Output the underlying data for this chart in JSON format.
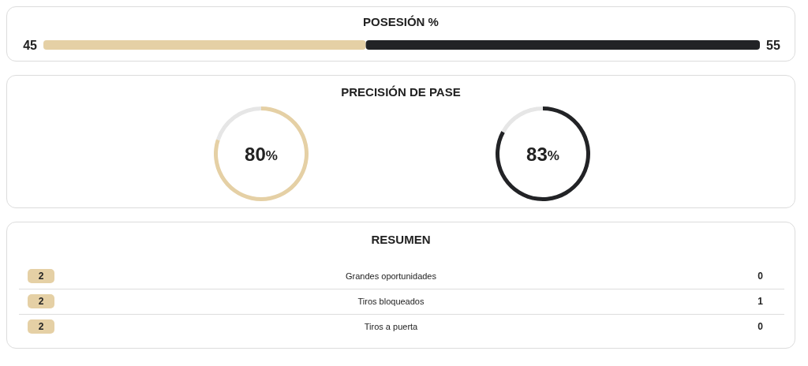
{
  "chart_data": [
    {
      "type": "bar",
      "title": "POSESIÓN %",
      "orientation": "horizontal",
      "xlim": [
        0,
        100
      ],
      "tick_labels": false,
      "stacked": true,
      "categories": [
        null
      ],
      "series": [
        {
          "color": "#e5d0a5",
          "values": [
            45
          ]
        },
        {
          "color": "#222326",
          "values": [
            55
          ]
        }
      ],
      "data_labels": true
    },
    {
      "type": "donut",
      "title": "PRECISIÓN DE PASE",
      "categories": [
        null,
        null
      ],
      "values": [
        80,
        20
      ],
      "colors": [
        "#e5d0a5",
        "#e6e6e6"
      ],
      "value_labels": [
        "80%",
        null
      ]
    },
    {
      "type": "donut",
      "categories": [
        null,
        null
      ],
      "values": [
        83,
        17
      ],
      "colors": [
        "#222326",
        "#e6e6e6"
      ],
      "value_labels": [
        "83%",
        null
      ]
    },
    {
      "type": "other",
      "title": "RESUMEN",
      "categories": [
        "Grandes oportunidades",
        "Tiros bloqueados",
        "Tiros a puerta"
      ],
      "series": [
        {
          "color": "#e5d0a5",
          "values": [
            2,
            2,
            2
          ]
        },
        {
          "values": [
            0,
            1,
            0
          ]
        }
      ],
      "data_labels": true
    }
  ]
}
